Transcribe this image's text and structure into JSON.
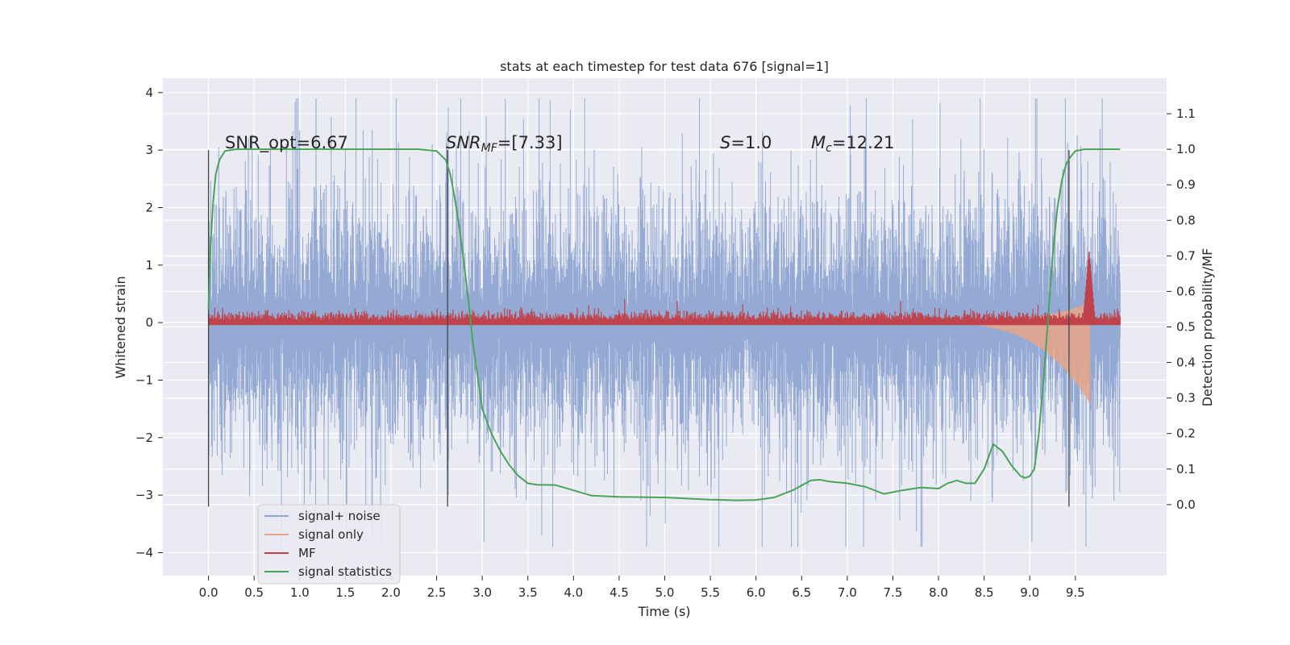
{
  "chart_data": {
    "type": "line",
    "title": "stats at each timestep for test data 676 [signal=1]",
    "xlabel": "Time (s)",
    "ylabel": "Whitened strain",
    "ylabel_right": "Detection probability/MF",
    "xlim": [
      -0.5,
      10.5
    ],
    "ylim": [
      -4.4,
      4.25
    ],
    "ylim_right": [
      -0.2,
      1.2
    ],
    "x_ticks": [
      "0.0",
      "0.5",
      "1.0",
      "1.5",
      "2.0",
      "2.5",
      "3.0",
      "3.5",
      "4.0",
      "4.5",
      "5.0",
      "5.5",
      "6.0",
      "6.5",
      "7.0",
      "7.5",
      "8.0",
      "8.5",
      "9.0",
      "9.5"
    ],
    "y_ticks": [
      "4",
      "3",
      "2",
      "1",
      "0",
      "−1",
      "−2",
      "−3",
      "−4"
    ],
    "y_ticks_right": [
      "1.1",
      "1.0",
      "0.9",
      "0.8",
      "0.7",
      "0.6",
      "0.5",
      "0.4",
      "0.3",
      "0.2",
      "0.1",
      "0.0"
    ],
    "grid": true,
    "legend_position": "lower-left",
    "annotations": {
      "snr_opt": "SNR_opt=6.67",
      "snr_mf_main": "SNR",
      "snr_mf_sub": "MF",
      "snr_mf_value": "=[7.33]",
      "s_label": "S",
      "s_value": "=1.0",
      "mc_label": "M",
      "mc_sub": "c",
      "mc_value": "=12.21"
    },
    "vertical_markers": {
      "x": [
        0.0,
        2.62,
        9.43
      ],
      "y_range": [
        -3.2,
        3.0
      ]
    },
    "series": [
      {
        "name": "signal+ noise",
        "color": "#8fa6d2",
        "description_values": "noise envelope",
        "x_range": [
          0.0,
          9.99
        ],
        "amplitude": 1.3,
        "peak": 3.9
      },
      {
        "name": "signal only",
        "color": "#e8a488",
        "x_range": [
          7.5,
          9.66
        ],
        "max_amplitude": 1.4
      },
      {
        "name": "MF",
        "color": "#c0424b",
        "x_range": [
          0.0,
          9.99
        ],
        "baseline": 0.52,
        "peak_x": 9.65,
        "peak_value": 0.72
      },
      {
        "name": "signal statistics",
        "color": "#4aa35a",
        "x": [
          0.0,
          0.02,
          0.05,
          0.08,
          0.12,
          0.18,
          0.3,
          0.5,
          1.0,
          1.5,
          2.0,
          2.3,
          2.5,
          2.6,
          2.65,
          2.7,
          2.75,
          2.8,
          2.85,
          2.9,
          2.95,
          3.0,
          3.1,
          3.2,
          3.3,
          3.4,
          3.5,
          3.6,
          3.8,
          4.0,
          4.2,
          4.5,
          5.0,
          5.5,
          5.8,
          6.0,
          6.2,
          6.4,
          6.6,
          6.7,
          6.8,
          7.0,
          7.2,
          7.4,
          7.6,
          7.8,
          8.0,
          8.1,
          8.2,
          8.3,
          8.4,
          8.5,
          8.6,
          8.7,
          8.8,
          8.9,
          8.95,
          9.0,
          9.05,
          9.1,
          9.15,
          9.2,
          9.25,
          9.3,
          9.35,
          9.4,
          9.45,
          9.5,
          9.6,
          9.8,
          9.99
        ],
        "values": [
          0.55,
          0.72,
          0.85,
          0.93,
          0.97,
          0.995,
          1.0,
          1.0,
          1.0,
          1.0,
          1.0,
          1.0,
          0.995,
          0.97,
          0.93,
          0.86,
          0.78,
          0.68,
          0.57,
          0.45,
          0.36,
          0.27,
          0.2,
          0.15,
          0.11,
          0.08,
          0.06,
          0.056,
          0.055,
          0.04,
          0.025,
          0.022,
          0.02,
          0.014,
          0.012,
          0.013,
          0.02,
          0.04,
          0.068,
          0.07,
          0.065,
          0.06,
          0.05,
          0.03,
          0.04,
          0.048,
          0.045,
          0.06,
          0.068,
          0.06,
          0.06,
          0.1,
          0.17,
          0.15,
          0.11,
          0.08,
          0.075,
          0.08,
          0.1,
          0.2,
          0.35,
          0.52,
          0.7,
          0.83,
          0.91,
          0.96,
          0.98,
          0.995,
          1.0,
          1.0,
          1.0
        ]
      }
    ]
  }
}
